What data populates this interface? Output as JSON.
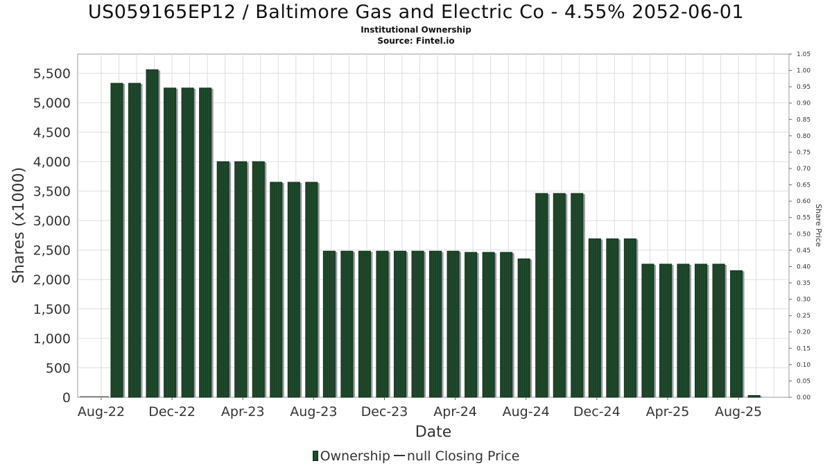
{
  "title": "US059165EP12 / Baltimore Gas and Electric Co - 4.55% 2052-06-01",
  "subtitle": "Institutional Ownership",
  "source": "Source: Fintel.io",
  "legend": {
    "ownership": "Ownership",
    "price": "null Closing Price"
  },
  "colors": {
    "bar": "#1f4a2c",
    "bar_dark": "#0f2e19",
    "bar_shadow": "#9a9a9a",
    "grid": "#dddddd"
  },
  "chart_data": {
    "type": "bar",
    "xlabel": "Date",
    "ylabel": "Shares (x1000)",
    "y2label": "Share Price",
    "ylim": [
      0,
      5800
    ],
    "y2lim": [
      0,
      1.05
    ],
    "grid": true,
    "legend_position": "bottom",
    "x_tick_labels": [
      "Aug-22",
      "Dec-22",
      "Apr-23",
      "Aug-23",
      "Dec-23",
      "Apr-24",
      "Aug-24",
      "Dec-24",
      "Apr-25",
      "Aug-25"
    ],
    "y_ticks": [
      "0",
      "500",
      "1,000",
      "1,500",
      "2,000",
      "2,500",
      "3,000",
      "3,500",
      "4,000",
      "4,500",
      "5,000",
      "5,500"
    ],
    "y2_ticks": [
      "0.00",
      "0.05",
      "0.10",
      "0.15",
      "0.20",
      "0.25",
      "0.30",
      "0.35",
      "0.40",
      "0.45",
      "0.50",
      "0.55",
      "0.60",
      "0.65",
      "0.70",
      "0.75",
      "0.80",
      "0.85",
      "0.90",
      "0.95",
      "1.00",
      "1.05"
    ],
    "series": [
      {
        "name": "Ownership",
        "values": [
          5330,
          5330,
          5560,
          5250,
          5250,
          5250,
          4000,
          4000,
          4000,
          3650,
          3650,
          3650,
          2480,
          2480,
          2480,
          2480,
          2480,
          2480,
          2480,
          2480,
          2460,
          2460,
          2460,
          2350,
          3460,
          3460,
          3460,
          2690,
          2690,
          2690,
          2260,
          2260,
          2260,
          2260,
          2260,
          2150,
          30
        ]
      }
    ]
  }
}
